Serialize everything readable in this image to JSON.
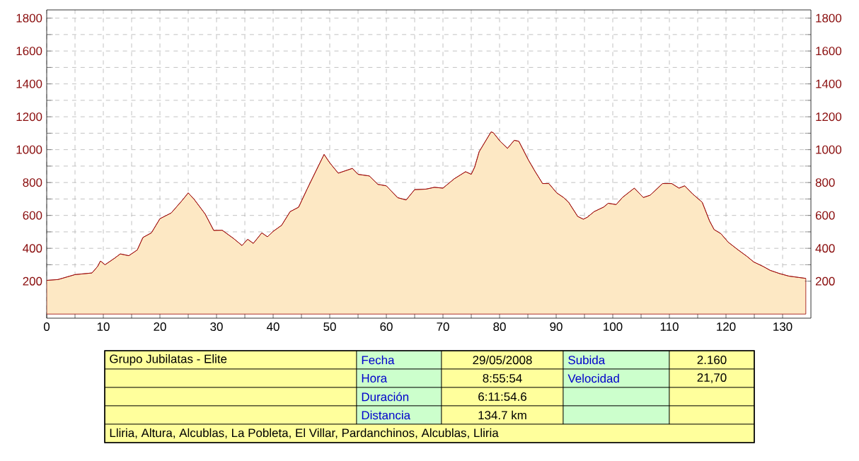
{
  "chart_data": {
    "type": "area",
    "xlim": [
      0,
      135
    ],
    "ylim": [
      -25,
      1850
    ],
    "y2lim": [
      -25,
      1850
    ],
    "xticks": [
      0,
      {
        "value": 5,
        "label": null
      },
      10,
      {
        "value": 15,
        "label": null
      },
      20,
      {
        "value": 25,
        "label": null
      },
      30,
      {
        "value": 35,
        "label": null
      },
      40,
      {
        "value": 45,
        "label": null
      },
      50,
      {
        "value": 55,
        "label": null
      },
      60,
      {
        "value": 65,
        "label": null
      },
      70,
      {
        "value": 75,
        "label": null
      },
      80,
      {
        "value": 85,
        "label": null
      },
      90,
      {
        "value": 95,
        "label": null
      },
      100,
      {
        "value": 105,
        "label": null
      },
      110,
      {
        "value": 115,
        "label": null
      },
      120,
      {
        "value": 125,
        "label": null
      },
      130
    ],
    "yticks": [
      200,
      {
        "value": 300,
        "label": null
      },
      400,
      {
        "value": 500,
        "label": null
      },
      600,
      {
        "value": 700,
        "label": null
      },
      800,
      {
        "value": 900,
        "label": null
      },
      1000,
      {
        "value": 1100,
        "label": null
      },
      1200,
      {
        "value": 1300,
        "label": null
      },
      1400,
      {
        "value": 1500,
        "label": null
      },
      1600,
      {
        "value": 1700,
        "label": null
      },
      1800
    ],
    "y2ticks": [
      200,
      {
        "value": 300,
        "label": null
      },
      400,
      {
        "value": 500,
        "label": null
      },
      600,
      {
        "value": 700,
        "label": null
      },
      800,
      {
        "value": 900,
        "label": null
      },
      1000,
      {
        "value": 1100,
        "label": null
      },
      1200,
      {
        "value": 1300,
        "label": null
      },
      1400,
      {
        "value": 1500,
        "label": null
      },
      1600,
      {
        "value": 1700,
        "label": null
      },
      1800
    ],
    "grid": true,
    "series": [
      {
        "color": "#fde8c4",
        "x": [
          0,
          2,
          4,
          5,
          8,
          9,
          9.5,
          10.3,
          12,
          13,
          14.5,
          16,
          17,
          18.5,
          20,
          22,
          24,
          25,
          26,
          28,
          29.5,
          31,
          33,
          34.5,
          35.5,
          36.5,
          38,
          39,
          40,
          41.5,
          43,
          44.5,
          46,
          47.5,
          49,
          50,
          51.5,
          54,
          55,
          57,
          58.5,
          60,
          62,
          63.5,
          65,
          67,
          68.5,
          70,
          72,
          74,
          75,
          75.6,
          76.4,
          78.5,
          78.9,
          80.1,
          81.4,
          82.6,
          83.4,
          85.1,
          86.3,
          87.6,
          88.7,
          90.1,
          91.3,
          92.2,
          93.8,
          94.8,
          95.5,
          96.7,
          98.4,
          99.2,
          100.6,
          101.7,
          103.8,
          105.4,
          106.6,
          108.8,
          110.4,
          111.7,
          112.7,
          114.1,
          115.8,
          117.1,
          117.9,
          119.1,
          120.4,
          122,
          123.7,
          124.9,
          126.6,
          127.8,
          129.5,
          131.1,
          132.8,
          134.1
        ],
        "values": [
          205,
          210,
          230,
          240,
          250,
          290,
          323,
          300,
          340,
          366,
          355,
          390,
          466,
          494,
          580,
          615,
          694,
          737,
          700,
          608,
          509,
          510,
          460,
          417,
          455,
          430,
          494,
          470,
          503,
          540,
          623,
          650,
          760,
          866,
          971,
          920,
          857,
          886,
          850,
          840,
          789,
          780,
          708,
          694,
          757,
          760,
          771,
          766,
          823,
          866,
          850,
          894,
          988,
          1108,
          1103,
          1051,
          1008,
          1057,
          1051,
          937,
          866,
          794,
          794,
          737,
          709,
          680,
          594,
          577,
          589,
          623,
          651,
          674,
          666,
          709,
          766,
          709,
          723,
          794,
          794,
          766,
          780,
          731,
          680,
          566,
          514,
          489,
          437,
          394,
          351,
          317,
          289,
          266,
          246,
          231,
          223,
          217
        ]
      }
    ],
    "annotations": [
      "Grupo Jubilatas - Elite",
      "Fecha",
      "29/05/2008",
      "Subida",
      "2.160",
      "Hora",
      "8:55:54",
      "Velocidad",
      "21,70",
      "Duración",
      "6:11:54.6",
      "Distancia",
      "134.7 km",
      "Lliria, Altura, Alcublas, La Pobleta, El Villar, Pardanchinos, Alcublas, Lliria"
    ]
  }
}
